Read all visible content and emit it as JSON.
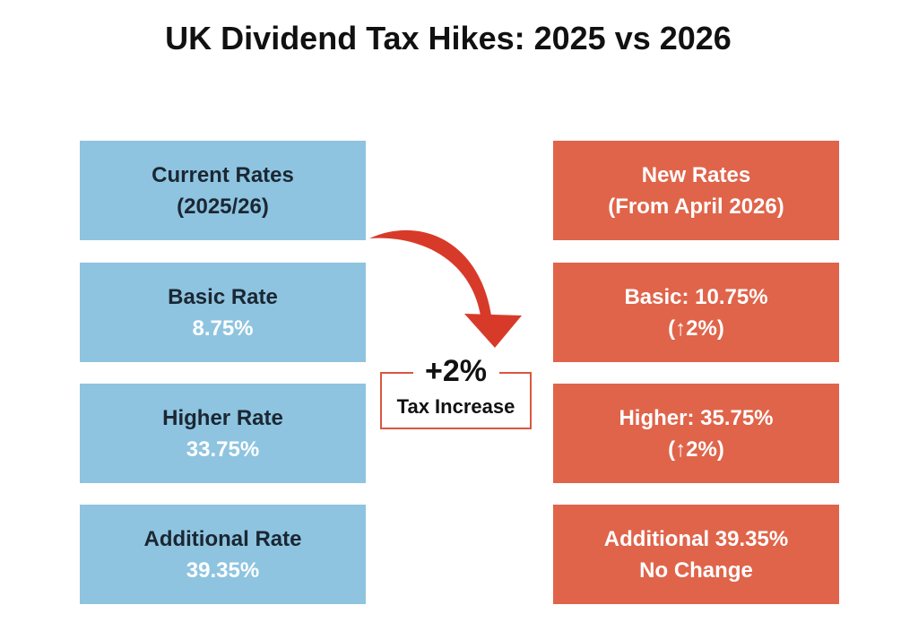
{
  "title": "UK Dividend Tax Hikes: 2025 vs 2026",
  "current": {
    "header": [
      "Current Rates",
      "(2025/26)"
    ],
    "rows": [
      {
        "label": "Basic Rate",
        "value": "8.75%"
      },
      {
        "label": "Higher Rate",
        "value": "33.75%"
      },
      {
        "label": "Additional Rate",
        "value": "39.35%"
      }
    ]
  },
  "new": {
    "header": [
      "New Rates",
      "(From April 2026)"
    ],
    "rows": [
      {
        "label": "Basic: 10.75%",
        "note": "(↑2%)"
      },
      {
        "label": "Higher: 35.75%",
        "note": "(↑2%)"
      },
      {
        "label": "Additional 39.35%",
        "note": "No Change"
      }
    ]
  },
  "increase": {
    "value": "+2%",
    "label": "Tax Increase"
  },
  "colors": {
    "current": "#8ec4e0",
    "new": "#e0644a",
    "arrow": "#d83a2a"
  }
}
